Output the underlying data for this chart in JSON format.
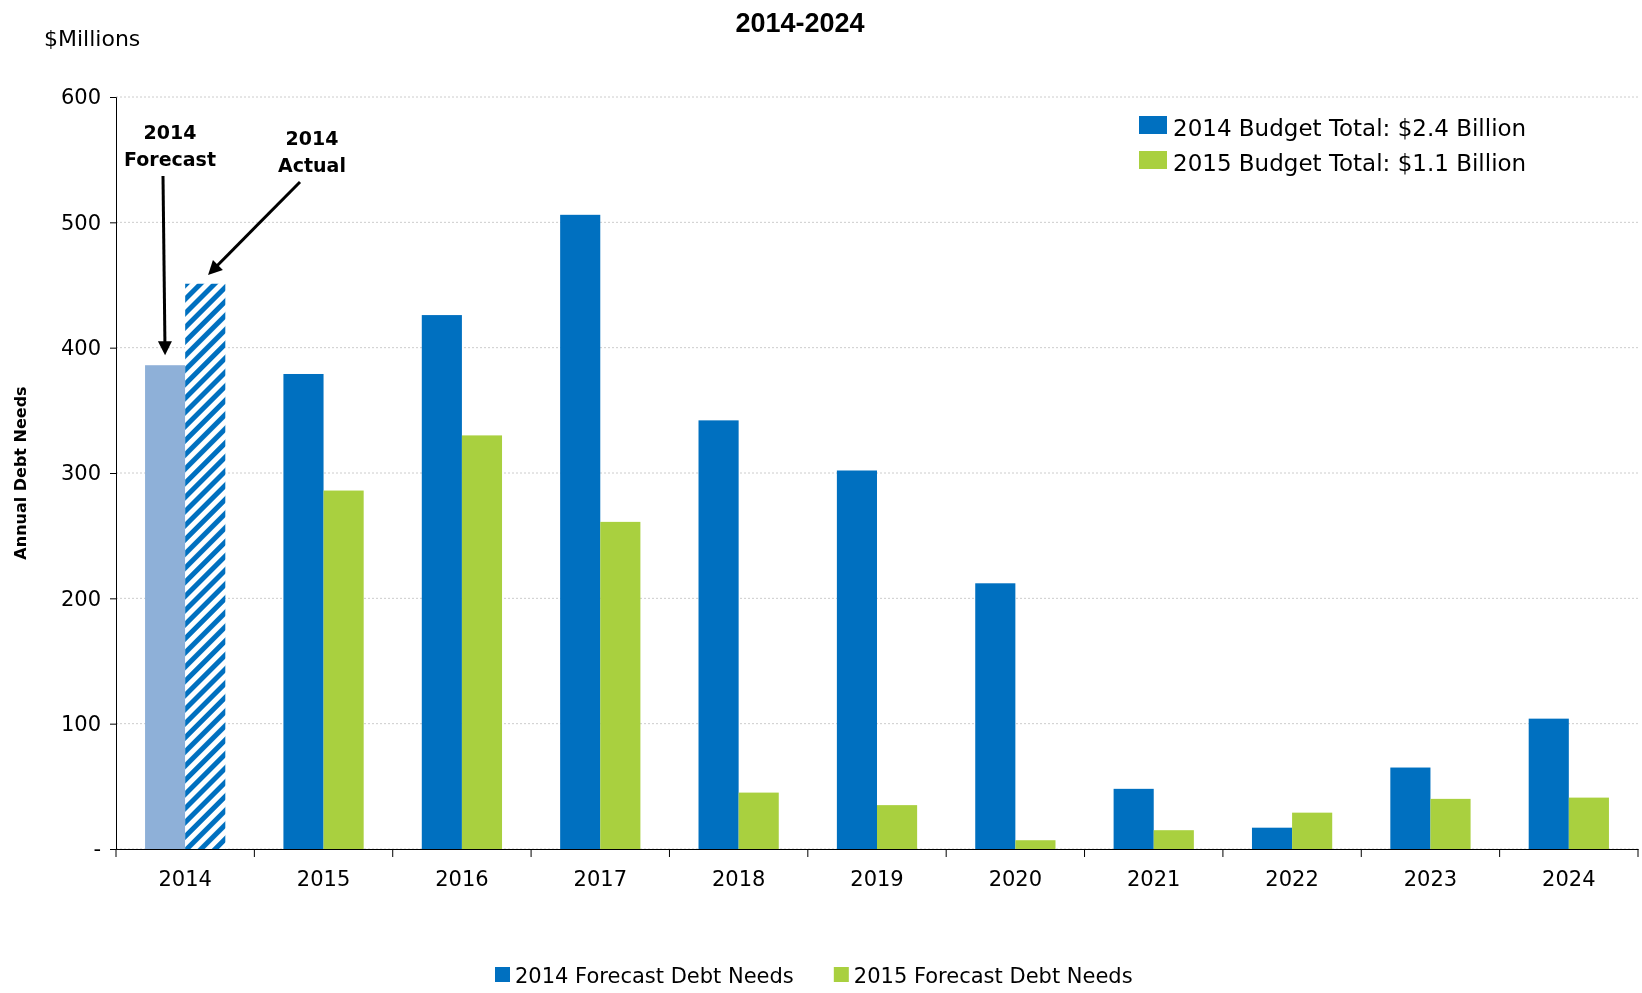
{
  "chart_data": {
    "type": "bar",
    "title": "2014-2024",
    "ylabel": "Annual Debt Needs",
    "categories": [
      "2014",
      "2015",
      "2016",
      "2017",
      "2018",
      "2019",
      "2020",
      "2021",
      "2022",
      "2023",
      "2024"
    ],
    "series": [
      {
        "name": "2014 Forecast Debt Needs",
        "color": "#0070c0",
        "colors": [
          "#8eb0d8",
          "#0070c0",
          "#0070c0",
          "#0070c0",
          "#0070c0",
          "#0070c0",
          "#0070c0",
          "#0070c0",
          "#0070c0",
          "#0070c0",
          "#0070c0"
        ],
        "values": [
          386,
          379,
          426,
          506,
          342,
          302,
          212,
          48,
          17,
          65,
          104
        ]
      },
      {
        "name": "2015 Forecast Debt Needs",
        "color": "#a9d03f",
        "colors": [
          "#0070c0",
          "#a9d03f",
          "#a9d03f",
          "#a9d03f",
          "#a9d03f",
          "#a9d03f",
          "#a9d03f",
          "#a9d03f",
          "#a9d03f",
          "#a9d03f",
          "#a9d03f"
        ],
        "values": [
          451,
          286,
          330,
          261,
          45,
          35,
          7,
          15,
          29,
          40,
          41
        ]
      }
    ],
    "ylim": [
      0,
      600
    ],
    "yticks": [
      {
        "value": 0,
        "label": "-"
      },
      100,
      200,
      300,
      400,
      500,
      600
    ],
    "grid": "y",
    "legend": "bottom",
    "annotations": [
      "$Millions",
      "2014 Budget Total: $2.4 Billion",
      "2015 Budget Total: $1.1 Billion",
      "2014 Forecast",
      "2014 Actual"
    ]
  }
}
